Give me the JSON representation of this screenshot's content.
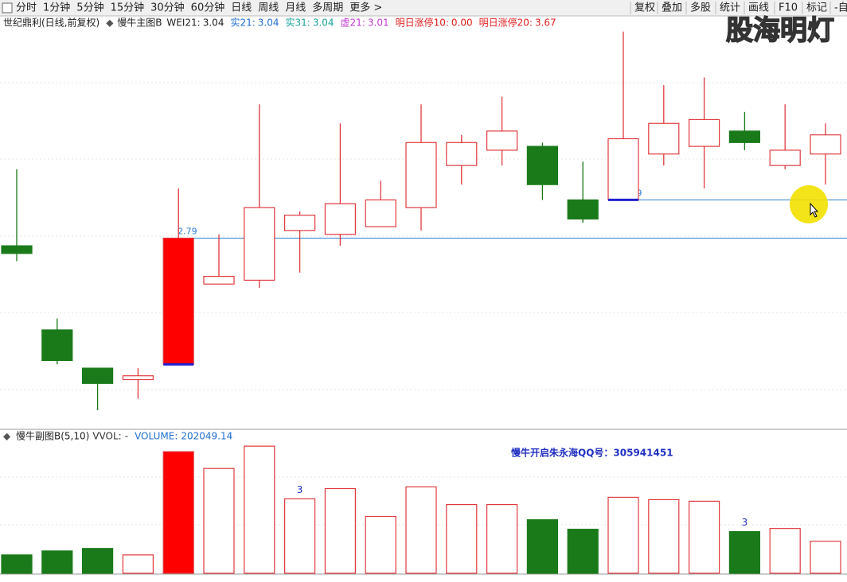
{
  "toolbar": {
    "left": [
      "分时",
      "1分钟",
      "5分钟",
      "15分钟",
      "30分钟",
      "60分钟",
      "日线",
      "周线",
      "月线",
      "多周期",
      "更多 >"
    ],
    "active": 6,
    "right": [
      "复权",
      "叠加",
      "多股",
      "统计",
      "画线",
      "F10",
      "标记",
      "-自"
    ]
  },
  "watermark": "股海明灯",
  "chart_data": [
    {
      "type": "candlestick",
      "title": "世纪鼎利(日线,前复权)",
      "indicator": "慢牛主图B",
      "legend": [
        {
          "name": "WEI21:",
          "value": 3.04,
          "color": "#222222"
        },
        {
          "name": "实21:",
          "value": 3.04,
          "color": "#1f6fd1"
        },
        {
          "name": "实31:",
          "value": 3.04,
          "color": "#1aa39a"
        },
        {
          "name": "虚21:",
          "value": 3.01,
          "color": "#c23ad1"
        },
        {
          "name": "明日涨停10:",
          "value": {
            "value": 0,
            "label": "0.00"
          },
          "color": "#e02020"
        },
        {
          "name": "明日涨停20:",
          "value": 3.67,
          "color": "#e02020"
        }
      ],
      "open": [
        2.77,
        2.55,
        2.45,
        2.42,
        2.46,
        2.67,
        2.68,
        2.81,
        2.8,
        2.82,
        2.87,
        2.98,
        3.02,
        3.03,
        2.89,
        2.89,
        3.01,
        3.03,
        3.07,
        2.98,
        3.01
      ],
      "high": [
        2.97,
        2.58,
        2.45,
        2.45,
        2.92,
        2.8,
        3.14,
        2.86,
        3.09,
        2.94,
        3.14,
        3.06,
        3.16,
        3.04,
        2.99,
        3.33,
        3.19,
        3.21,
        3.12,
        3.14,
        3.09
      ],
      "low": [
        2.73,
        2.46,
        2.34,
        2.37,
        2.46,
        2.67,
        2.66,
        2.7,
        2.77,
        2.82,
        2.81,
        2.93,
        2.98,
        2.89,
        2.83,
        2.89,
        2.98,
        2.92,
        3.02,
        2.97,
        2.93
      ],
      "close": [
        2.75,
        2.47,
        2.41,
        2.43,
        2.79,
        2.69,
        2.87,
        2.85,
        2.88,
        2.89,
        3.04,
        3.04,
        3.07,
        2.93,
        2.84,
        3.05,
        3.09,
        3.1,
        3.04,
        3.02,
        3.06
      ],
      "fills": [
        "#1a7a1a",
        "#1a7a1a",
        "#1a7a1a",
        "#ffffff",
        "#ff0000",
        "#ffffff",
        "#ffffff",
        "#ffffff",
        "#ffffff",
        "#ffffff",
        "#ffffff",
        "#ffffff",
        "#ffffff",
        "#1a7a1a",
        "#1a7a1a",
        "#ffffff",
        "#ffffff",
        "#ffffff",
        "#1a7a1a",
        "#ffffff",
        "#ffffff"
      ],
      "up_color": "#e0393e",
      "down_color": "#1a7a1a",
      "levels": [
        2.79,
        2.89
      ],
      "level_color": "#2f7fd0",
      "ylim": [
        2.29,
        3.34
      ]
    },
    {
      "type": "volume",
      "title": "慢牛副图B(5,10)",
      "legend": [
        {
          "name": "VVOL:",
          "value": "-",
          "color": "#333333"
        },
        {
          "name": "VOLUME:",
          "value": 202049.14,
          "color": "#1f6fd1"
        }
      ],
      "note": "慢牛开启朱永海QQ号：305941451",
      "values": [
        116000,
        141000,
        157000,
        116000,
        768000,
        662000,
        803000,
        470000,
        535000,
        359000,
        546000,
        434000,
        434000,
        338000,
        278000,
        480000,
        465000,
        455000,
        263000,
        283000,
        202049.14
      ],
      "annotations": [
        "3",
        "3"
      ],
      "ylim": [
        0,
        884000
      ]
    }
  ]
}
